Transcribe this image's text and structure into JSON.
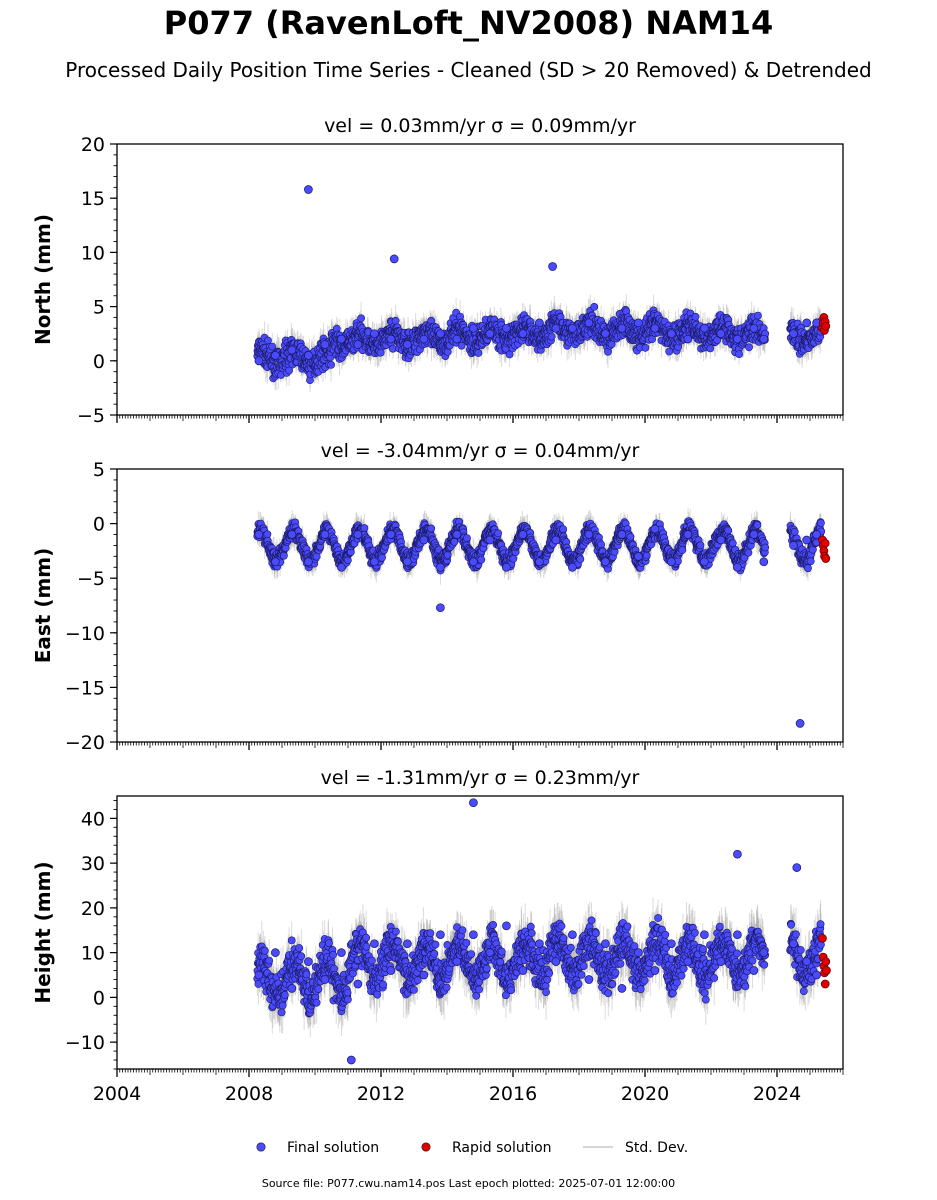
{
  "header": {
    "title": "P077 (RavenLoft_NV2008) NAM14",
    "subtitle": "Processed Daily Position Time Series - Cleaned (SD > 20 Removed) & Detrended"
  },
  "footer": {
    "source": "Source file: P077.cwu.nam14.pos  Last epoch plotted: 2025-07-01 12:00:00"
  },
  "chart_data": [
    {
      "type": "scatter",
      "title": "vel = 0.03mm/yr   σ = 0.09mm/yr",
      "ylabel": "North (mm)",
      "xlim": [
        2004.0,
        2026.0
      ],
      "ylim": [
        -5,
        20
      ],
      "yticks": [
        "20",
        "15",
        "10",
        "5",
        "0",
        "−5"
      ],
      "ytick_values": [
        20,
        15,
        10,
        5,
        0,
        -5
      ],
      "series": [
        {
          "name": "Final solution",
          "color": "#4a4aff",
          "x": [
            2008.3,
            2008.8,
            2009.3,
            2009.8,
            2010.3,
            2010.8,
            2011.3,
            2011.8,
            2012.3,
            2012.8,
            2013.3,
            2013.8,
            2014.3,
            2014.8,
            2015.3,
            2015.8,
            2016.3,
            2016.8,
            2017.3,
            2017.8,
            2018.3,
            2018.8,
            2019.3,
            2019.8,
            2020.3,
            2020.8,
            2021.3,
            2021.8,
            2022.3,
            2022.8,
            2023.3,
            2023.6,
            2024.5,
            2024.9,
            2025.2,
            2009.8,
            2012.4,
            2017.2
          ],
          "y": [
            0.0,
            0.5,
            1.0,
            0.5,
            1.5,
            2.0,
            1.5,
            2.5,
            2.0,
            1.5,
            2.0,
            2.5,
            2.0,
            3.0,
            2.5,
            3.0,
            2.5,
            3.5,
            3.0,
            3.0,
            3.5,
            2.5,
            3.0,
            3.5,
            3.0,
            2.5,
            2.0,
            3.0,
            2.5,
            2.0,
            3.0,
            2.0,
            2.5,
            3.5,
            3.5,
            15.8,
            9.4,
            8.7
          ]
        },
        {
          "name": "Rapid solution",
          "color": "#e00000",
          "x": [
            2025.38,
            2025.4,
            2025.42,
            2025.44,
            2025.46,
            2025.48
          ],
          "y": [
            3.0,
            3.5,
            4.0,
            2.8,
            3.6,
            3.2
          ]
        }
      ],
      "std_dev_label": "Std. Dev.",
      "grid": false
    },
    {
      "type": "scatter",
      "title": "vel = -3.04mm/yr   σ = 0.04mm/yr",
      "ylabel": "East (mm)",
      "xlim": [
        2004.0,
        2026.0
      ],
      "ylim": [
        -20,
        5
      ],
      "yticks": [
        "5",
        "0",
        "−5",
        "−10",
        "−15",
        "−20"
      ],
      "ytick_values": [
        5,
        0,
        -5,
        -10,
        -15,
        -20
      ],
      "series": [
        {
          "name": "Final solution",
          "color": "#4a4aff",
          "x": [
            2008.3,
            2008.8,
            2009.3,
            2009.8,
            2010.3,
            2010.8,
            2011.3,
            2011.8,
            2012.3,
            2012.8,
            2013.3,
            2013.8,
            2014.3,
            2014.8,
            2015.3,
            2015.8,
            2016.3,
            2016.8,
            2017.3,
            2017.8,
            2018.3,
            2018.8,
            2019.3,
            2019.8,
            2020.3,
            2020.8,
            2021.3,
            2021.8,
            2022.3,
            2022.8,
            2023.3,
            2023.6,
            2024.5,
            2024.9,
            2025.2,
            2024.7,
            2013.8
          ],
          "y": [
            -1.0,
            -3.5,
            -1.0,
            -3.5,
            -1.0,
            -4.0,
            -1.0,
            -3.5,
            -1.0,
            -3.5,
            -1.5,
            -4.0,
            -1.0,
            -3.5,
            -1.5,
            -4.0,
            -1.0,
            -3.5,
            -1.5,
            -4.0,
            -1.0,
            -3.5,
            -1.0,
            -3.0,
            -0.5,
            -3.5,
            -1.0,
            -3.5,
            -1.5,
            -4.0,
            -1.0,
            -3.5,
            -2.0,
            -1.5,
            -1.0,
            -18.3,
            -7.7
          ]
        },
        {
          "name": "Rapid solution",
          "color": "#e00000",
          "x": [
            2025.38,
            2025.4,
            2025.42,
            2025.44,
            2025.46,
            2025.48
          ],
          "y": [
            -1.5,
            -2.0,
            -2.5,
            -3.0,
            -1.8,
            -3.2
          ]
        }
      ],
      "std_dev_label": "Std. Dev.",
      "grid": false
    },
    {
      "type": "scatter",
      "title": "vel = -1.31mm/yr   σ = 0.23mm/yr",
      "ylabel": "Height (mm)",
      "xlim": [
        2004.0,
        2026.0
      ],
      "ylim": [
        -16,
        45
      ],
      "yticks": [
        "40",
        "30",
        "20",
        "10",
        "0",
        "−10"
      ],
      "ytick_values": [
        40,
        30,
        20,
        10,
        0,
        -10
      ],
      "xticks": [
        "2004",
        "2008",
        "2012",
        "2016",
        "2020",
        "2024"
      ],
      "xtick_values": [
        2004,
        2008,
        2012,
        2016,
        2020,
        2024
      ],
      "series": [
        {
          "name": "Final solution",
          "color": "#4a4aff",
          "x": [
            2008.3,
            2008.8,
            2009.3,
            2009.8,
            2010.3,
            2010.8,
            2011.3,
            2011.8,
            2012.3,
            2012.8,
            2013.3,
            2013.8,
            2014.3,
            2014.8,
            2015.3,
            2015.8,
            2016.3,
            2016.8,
            2017.3,
            2017.8,
            2018.3,
            2018.8,
            2019.3,
            2019.8,
            2020.3,
            2020.8,
            2021.3,
            2021.8,
            2022.3,
            2022.8,
            2023.3,
            2023.6,
            2024.5,
            2024.9,
            2025.2,
            2014.8,
            2022.8,
            2011.1,
            2024.6
          ],
          "y": [
            5,
            10,
            2,
            8,
            4,
            10,
            3,
            12,
            6,
            12,
            5,
            14,
            8,
            14,
            10,
            16,
            6,
            12,
            8,
            14,
            4,
            12,
            2,
            10,
            6,
            12,
            8,
            14,
            8,
            14,
            6,
            10,
            12,
            8,
            5,
            43.5,
            32,
            -14,
            29
          ]
        },
        {
          "name": "Rapid solution",
          "color": "#e00000",
          "x": [
            2025.38,
            2025.4,
            2025.42,
            2025.44,
            2025.46,
            2025.48,
            2025.5
          ],
          "y": [
            13.2,
            9,
            7,
            5.5,
            3,
            8,
            6
          ]
        }
      ],
      "std_dev_label": "Std. Dev.",
      "grid": false
    }
  ],
  "legend": {
    "placement": "bottom-center",
    "items": [
      {
        "label": "Final solution",
        "color": "#4a4aff",
        "shape": "dot"
      },
      {
        "label": "Rapid solution",
        "color": "#e00000",
        "shape": "dot"
      },
      {
        "label": "Std. Dev.",
        "color": "#c8c8c8",
        "shape": "line"
      }
    ]
  }
}
